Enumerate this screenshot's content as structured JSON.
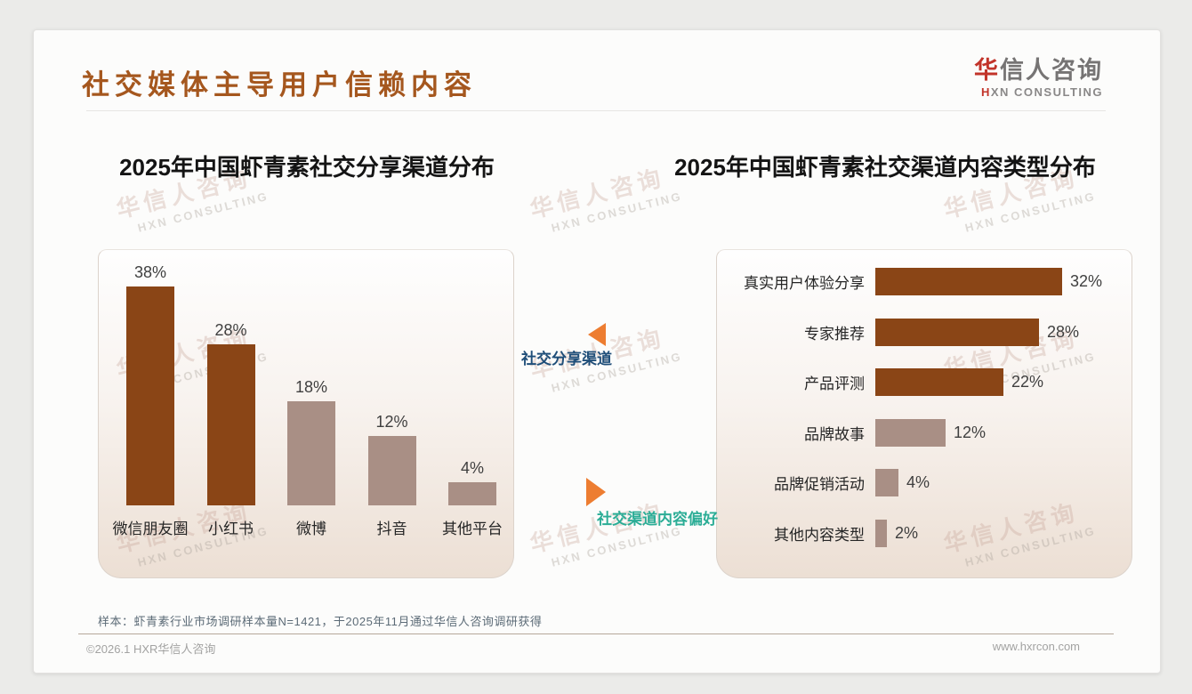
{
  "header": {
    "title": "社交媒体主导用户信赖内容"
  },
  "logo": {
    "cn_first": "华",
    "cn_rest": "信人咨询",
    "en_first": "H",
    "en_rest": "XN CONSULTING"
  },
  "watermark": {
    "line1": "华信人咨询",
    "line2": "HXN CONSULTING"
  },
  "annotations": {
    "top": {
      "label": "社交分享渠道"
    },
    "bottom": {
      "label": "社交渠道内容偏好"
    }
  },
  "footnote": "样本：虾青素行业市场调研样本量N=1421，于2025年11月通过华信人咨询调研获得",
  "footer": {
    "copyright": "©2026.1 HXR华信人咨询",
    "website": "www.hxrcon.com"
  },
  "colors": {
    "title_brown": "#a5571e",
    "bar_primary": "#8a4516",
    "bar_secondary": "#a98f85",
    "accent_orange": "#ed7d31",
    "annotation_blue": "#1f4e79",
    "annotation_teal": "#2bad96",
    "logo_red": "#c2342a"
  },
  "chart_data": [
    {
      "type": "bar",
      "orientation": "vertical",
      "title": "2025年中国虾青素社交分享渠道分布",
      "categories": [
        "微信朋友圈",
        "小红书",
        "微博",
        "抖音",
        "其他平台"
      ],
      "values": [
        38,
        28,
        18,
        12,
        4
      ],
      "unit": "%",
      "highlight_count": 2,
      "value_labels": true,
      "grid": false,
      "ylim": [
        0,
        40
      ]
    },
    {
      "type": "bar",
      "orientation": "horizontal",
      "title": "2025年中国虾青素社交渠道内容类型分布",
      "categories": [
        "真实用户体验分享",
        "专家推荐",
        "产品评测",
        "品牌故事",
        "品牌促销活动",
        "其他内容类型"
      ],
      "values": [
        32,
        28,
        22,
        12,
        4,
        2
      ],
      "unit": "%",
      "highlight_count": 3,
      "value_labels": true,
      "grid": false,
      "xlim": [
        0,
        35
      ]
    }
  ]
}
